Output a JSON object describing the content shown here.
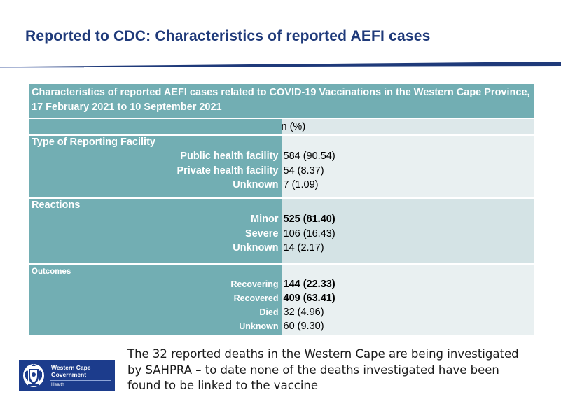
{
  "slide_title": "Reported to CDC: Characteristics of reported AEFI cases",
  "table": {
    "caption": "Characteristics of reported AEFI cases related to COVID-19 Vaccinations in the Western Cape Province, 17 February 2021 to 10 September 2021",
    "column_header": "n (%)",
    "sections": {
      "facility": {
        "title": "Type of Reporting Facility",
        "rows": [
          {
            "label": "Public health facility",
            "value": "584 (90.54)"
          },
          {
            "label": "Private health facility",
            "value": "54 (8.37)"
          },
          {
            "label": "Unknown",
            "value": "7 (1.09)"
          }
        ]
      },
      "reactions": {
        "title": "Reactions",
        "rows": [
          {
            "label": "Minor",
            "value": "525 (81.40)",
            "bold": true
          },
          {
            "label": "Severe",
            "value": "106 (16.43)"
          },
          {
            "label": "Unknown",
            "value": "14 (2.17)"
          }
        ]
      },
      "outcomes": {
        "title": "Outcomes",
        "rows": [
          {
            "label": "Recovering",
            "value": "144 (22.33)",
            "bold": true
          },
          {
            "label": "Recovered",
            "value": "409 (63.41)",
            "bold": true
          },
          {
            "label": "Died",
            "value": "32 (4.96)"
          },
          {
            "label": "Unknown",
            "value": "60 (9.30)"
          }
        ]
      }
    }
  },
  "logo": {
    "name": "Western Cape\nGovernment",
    "department": "Health",
    "color": "#1c3c8c"
  },
  "note": "The 32 reported deaths in the Western Cape are being investigated by SAHPRA – to date none of the deaths investigated have been found to be linked to the vaccine",
  "colors": {
    "title": "#1f3a7a",
    "table_header": "#72aeb3",
    "cell_light": "#dde8ea"
  }
}
